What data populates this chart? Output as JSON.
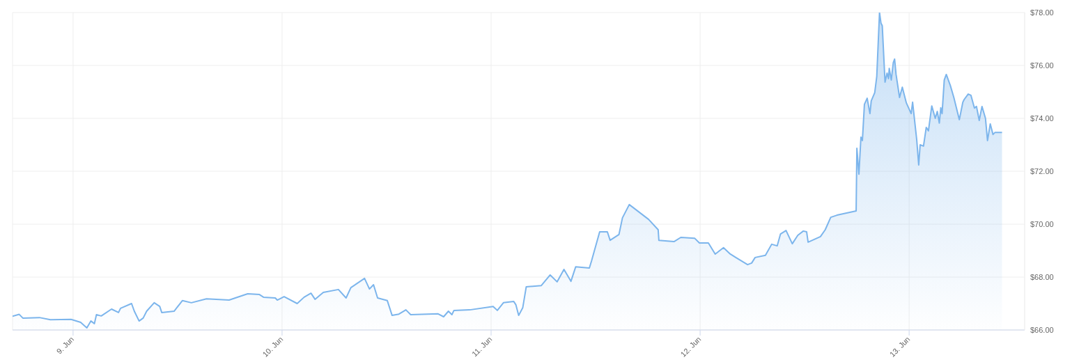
{
  "chart_data": {
    "type": "area",
    "color": "#7cb5ec",
    "grid": true,
    "xlim": [
      "--06-08T17:03",
      "--06-13T13:16"
    ],
    "xticks": [
      {
        "value": "--06-09",
        "label": "9. Jun"
      },
      {
        "value": "--06-10",
        "label": "10. Jun"
      },
      {
        "value": "--06-11",
        "label": "11. Jun"
      },
      {
        "value": "--06-12",
        "label": "12. Jun"
      },
      {
        "value": "--06-13",
        "label": "13. Jun"
      }
    ],
    "ylim": [
      66,
      78
    ],
    "yticks": [
      {
        "value": 66,
        "label": "$66.00"
      },
      {
        "value": 68,
        "label": "$68.00"
      },
      {
        "value": 70,
        "label": "$70.00"
      },
      {
        "value": 72,
        "label": "$72.00"
      },
      {
        "value": 74,
        "label": "$74.00"
      },
      {
        "value": 76,
        "label": "$76.00"
      },
      {
        "value": 78,
        "label": "$78.00"
      }
    ],
    "x": [
      "--06-08T17:03",
      "--06-08T17:49",
      "--06-08T18:14",
      "--06-08T20:08",
      "--06-08T21:24",
      "--06-08T23:46",
      "--06-09T00:52",
      "--06-09T01:35",
      "--06-09T02:03",
      "--06-09T02:27",
      "--06-09T02:41",
      "--06-09T03:14",
      "--06-09T04:25",
      "--06-09T05:13",
      "--06-09T05:27",
      "--06-09T06:43",
      "--06-09T07:02",
      "--06-09T07:35",
      "--06-09T08:03",
      "--06-09T08:27",
      "--06-09T09:19",
      "--06-09T09:57",
      "--06-09T10:11",
      "--06-09T11:36",
      "--06-09T12:33",
      "--06-09T13:35",
      "--06-09T15:19",
      "--06-09T17:55",
      "--06-09T20:03",
      "--06-09T21:24",
      "--06-09T21:52",
      "--06-09T23:13",
      "--06-09T23:27",
      "--06-10T00:14",
      "--06-10T01:44",
      "--06-10T02:32",
      "--06-10T03:19",
      "--06-10T03:47",
      "--06-10T04:44",
      "--06-10T06:28",
      "--06-10T07:21",
      "--06-10T07:54",
      "--06-10T09:28",
      "--06-10T10:02",
      "--06-10T10:30",
      "--06-10T10:58",
      "--06-10T12:05",
      "--06-10T12:38",
      "--06-10T13:25",
      "--06-10T14:13",
      "--06-10T14:46",
      "--06-10T17:55",
      "--06-10T18:33",
      "--06-10T19:06",
      "--06-10T19:30",
      "--06-10T19:44",
      "--06-10T21:33",
      "--06-11T00:14",
      "--06-11T00:43",
      "--06-11T01:25",
      "--06-11T02:36",
      "--06-11T02:51",
      "--06-11T03:10",
      "--06-11T03:38",
      "--06-11T04:02",
      "--06-11T05:46",
      "--06-11T06:47",
      "--06-11T07:35",
      "--06-11T08:22",
      "--06-11T09:10",
      "--06-11T09:43",
      "--06-11T11:17",
      "--06-11T11:32",
      "--06-11T12:28",
      "--06-11T13:21",
      "--06-11T13:40",
      "--06-11T14:41",
      "--06-11T15:05",
      "--06-11T15:52",
      "--06-11T18:05",
      "--06-11T19:11",
      "--06-11T19:16",
      "--06-11T21:00",
      "--06-11T21:47",
      "--06-11T23:22",
      "--06-11T23:55",
      "--06-12T00:57",
      "--06-12T01:44",
      "--06-12T02:41",
      "--06-12T03:28",
      "--06-12T04:06",
      "--06-12T05:27",
      "--06-12T05:55",
      "--06-12T06:19",
      "--06-12T07:30",
      "--06-12T08:13",
      "--06-12T08:51",
      "--06-12T09:14",
      "--06-12T09:52",
      "--06-12T10:35",
      "--06-12T11:13",
      "--06-12T11:51",
      "--06-12T12:14",
      "--06-12T12:24",
      "--06-12T13:49",
      "--06-12T14:22",
      "--06-12T15:00",
      "--06-12T15:43",
      "--06-12T17:55",
      "--06-12T18:00",
      "--06-12T18:14",
      "--06-12T18:28",
      "--06-12T18:38",
      "--06-12T18:52",
      "--06-12T19:11",
      "--06-12T19:30",
      "--06-12T19:39",
      "--06-12T20:03",
      "--06-12T20:17",
      "--06-12T20:36",
      "--06-12T20:46",
      "--06-12T20:55",
      "--06-12T21:14",
      "--06-12T21:28",
      "--06-12T21:38",
      "--06-12T21:43",
      "--06-12T21:57",
      "--06-12T22:11",
      "--06-12T22:20",
      "--06-12T22:30",
      "--06-12T22:54",
      "--06-12T23:13",
      "--06-12T23:41",
      "--06-13T00:14",
      "--06-13T00:24",
      "--06-13T00:52",
      "--06-13T01:06",
      "--06-13T01:16",
      "--06-13T01:39",
      "--06-13T01:58",
      "--06-13T02:13",
      "--06-13T02:36",
      "--06-13T03:00",
      "--06-13T03:14",
      "--06-13T03:28",
      "--06-13T03:38",
      "--06-13T03:47",
      "--06-13T04:02",
      "--06-13T04:16",
      "--06-13T04:44",
      "--06-13T05:08",
      "--06-13T05:46",
      "--06-13T06:10",
      "--06-13T06:19",
      "--06-13T06:47",
      "--06-13T07:06",
      "--06-13T07:30",
      "--06-13T07:44",
      "--06-13T08:03",
      "--06-13T08:22",
      "--06-13T08:46",
      "--06-13T09:00",
      "--06-13T09:19",
      "--06-13T09:38",
      "--06-13T09:52",
      "--06-13T10:40"
    ],
    "values": [
      66.52,
      66.59,
      66.45,
      66.47,
      66.39,
      66.4,
      66.29,
      66.08,
      66.34,
      66.24,
      66.58,
      66.53,
      66.79,
      66.66,
      66.82,
      67.0,
      66.71,
      66.34,
      66.45,
      66.71,
      67.03,
      66.89,
      66.66,
      66.71,
      67.11,
      67.03,
      67.18,
      67.13,
      67.37,
      67.34,
      67.24,
      67.21,
      67.13,
      67.26,
      67.0,
      67.24,
      67.39,
      67.16,
      67.42,
      67.53,
      67.21,
      67.6,
      67.95,
      67.55,
      67.71,
      67.21,
      67.11,
      66.55,
      66.6,
      66.76,
      66.58,
      66.61,
      66.5,
      66.71,
      66.58,
      66.74,
      66.76,
      66.89,
      66.74,
      67.03,
      67.08,
      66.95,
      66.55,
      66.84,
      67.63,
      67.68,
      68.08,
      67.82,
      68.29,
      67.84,
      68.39,
      68.34,
      68.61,
      69.71,
      69.71,
      69.39,
      69.61,
      70.24,
      70.74,
      70.18,
      69.79,
      69.39,
      69.34,
      69.5,
      69.47,
      69.29,
      69.29,
      68.87,
      69.11,
      68.87,
      68.74,
      68.47,
      68.53,
      68.74,
      68.82,
      69.24,
      69.18,
      69.63,
      69.76,
      69.26,
      69.58,
      69.74,
      69.71,
      69.32,
      69.53,
      69.79,
      70.26,
      70.34,
      70.5,
      72.87,
      71.89,
      73.29,
      73.16,
      74.53,
      74.76,
      74.18,
      74.66,
      74.97,
      75.58,
      78.0,
      77.6,
      77.5,
      75.37,
      75.71,
      75.5,
      75.89,
      75.45,
      76.11,
      76.24,
      75.66,
      74.79,
      75.18,
      74.58,
      74.18,
      74.61,
      73.21,
      72.24,
      73.0,
      72.95,
      73.66,
      73.53,
      74.47,
      74.0,
      74.26,
      73.82,
      74.4,
      74.18,
      75.45,
      75.66,
      75.24,
      74.79,
      73.95,
      74.61,
      74.71,
      74.92,
      74.87,
      74.39,
      74.45,
      73.92,
      74.45,
      74.0,
      73.16,
      73.79,
      73.39,
      73.47,
      73.47
    ]
  }
}
